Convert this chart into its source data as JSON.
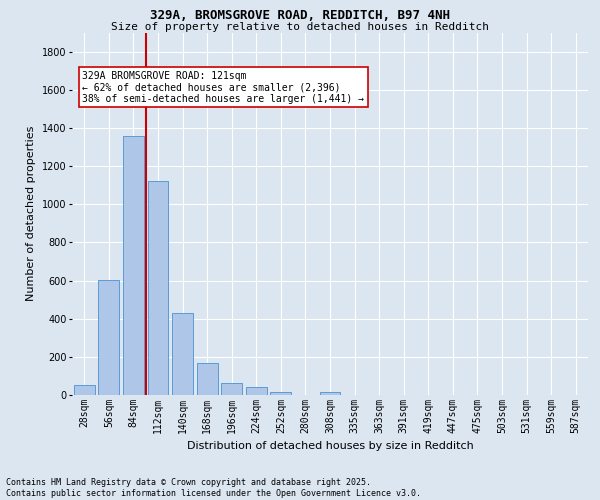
{
  "title1": "329A, BROMSGROVE ROAD, REDDITCH, B97 4NH",
  "title2": "Size of property relative to detached houses in Redditch",
  "xlabel": "Distribution of detached houses by size in Redditch",
  "ylabel": "Number of detached properties",
  "categories": [
    "28sqm",
    "56sqm",
    "84sqm",
    "112sqm",
    "140sqm",
    "168sqm",
    "196sqm",
    "224sqm",
    "252sqm",
    "280sqm",
    "308sqm",
    "335sqm",
    "363sqm",
    "391sqm",
    "419sqm",
    "447sqm",
    "475sqm",
    "503sqm",
    "531sqm",
    "559sqm",
    "587sqm"
  ],
  "values": [
    50,
    605,
    1360,
    1120,
    430,
    170,
    65,
    40,
    15,
    0,
    15,
    0,
    0,
    0,
    0,
    0,
    0,
    0,
    0,
    0,
    0
  ],
  "bar_color": "#aec6e8",
  "bar_edge_color": "#5b9bd5",
  "background_color": "#dce6f1",
  "grid_color": "#ffffff",
  "vline_color": "#cc0000",
  "annotation_text": "329A BROMSGROVE ROAD: 121sqm\n← 62% of detached houses are smaller (2,396)\n38% of semi-detached houses are larger (1,441) →",
  "annotation_box_color": "#ffffff",
  "annotation_box_edge": "#cc0000",
  "ylim": [
    0,
    1900
  ],
  "yticks": [
    0,
    200,
    400,
    600,
    800,
    1000,
    1200,
    1400,
    1600,
    1800
  ],
  "footnote": "Contains HM Land Registry data © Crown copyright and database right 2025.\nContains public sector information licensed under the Open Government Licence v3.0.",
  "bar_width": 0.85,
  "fig_width": 6.0,
  "fig_height": 5.0,
  "title1_fontsize": 9,
  "title2_fontsize": 8,
  "xlabel_fontsize": 8,
  "ylabel_fontsize": 8,
  "tick_fontsize": 7,
  "annot_fontsize": 7,
  "footnote_fontsize": 6
}
